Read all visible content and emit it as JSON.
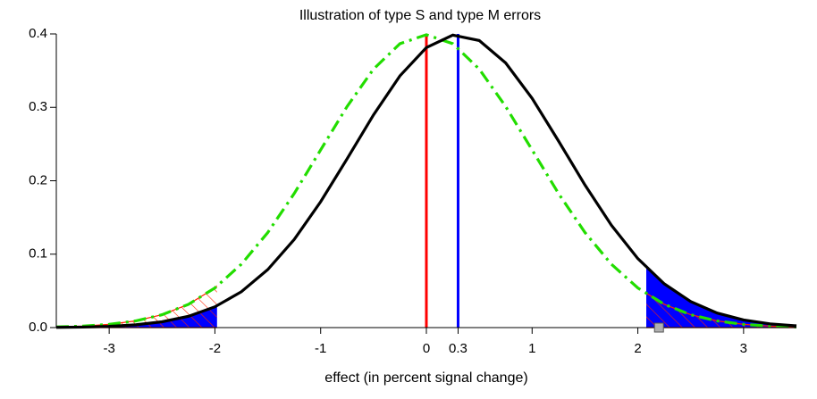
{
  "chart_data": {
    "type": "line",
    "title": "Illustration of type S and type M errors",
    "x_label": "effect (in percent signal change)",
    "x": [
      -3.5,
      -3.25,
      -3,
      -2.75,
      -2.5,
      -2.25,
      -2,
      -1.75,
      -1.5,
      -1.25,
      -1,
      -0.75,
      -0.5,
      -0.25,
      0,
      0.25,
      0.5,
      0.75,
      1,
      1.25,
      1.5,
      1.75,
      2,
      2.25,
      2.5,
      2.75,
      3,
      3.25,
      3.5
    ],
    "series": [
      {
        "color": "#22dd00",
        "style": "dashdot",
        "values": [
          0.0009,
          0.002,
          0.0044,
          0.0091,
          0.0175,
          0.0317,
          0.054,
          0.0863,
          0.1295,
          0.1826,
          0.242,
          0.3011,
          0.3521,
          0.3867,
          0.3989,
          0.3867,
          0.3521,
          0.3011,
          0.242,
          0.1826,
          0.1295,
          0.0863,
          0.054,
          0.0317,
          0.0175,
          0.0091,
          0.0044,
          0.002,
          0.0009
        ]
      },
      {
        "color": "#000000",
        "style": "solid",
        "values": [
          0.0003,
          0.0007,
          0.0017,
          0.0038,
          0.0079,
          0.0154,
          0.0283,
          0.0488,
          0.079,
          0.12,
          0.1714,
          0.2299,
          0.2897,
          0.3429,
          0.3814,
          0.3984,
          0.391,
          0.3605,
          0.3123,
          0.2541,
          0.1942,
          0.1394,
          0.094,
          0.0596,
          0.0355,
          0.0198,
          0.0104,
          0.0051,
          0.0024
        ]
      }
    ],
    "shade_cutoffs": [
      -1.98,
      2.08
    ],
    "shade_fill": "#0000ff",
    "hatch_color": "#ff2200",
    "vlines": [
      {
        "x": 0,
        "color": "#ff0000"
      },
      {
        "x": 0.3,
        "color": "#0000ff"
      }
    ],
    "marker": {
      "x": 2.2,
      "y": 0,
      "color": "#b0b0b0"
    },
    "xlim": [
      -3.5,
      3.5
    ],
    "ylim": [
      0,
      0.4
    ],
    "xticks": [
      -3,
      -2,
      -1,
      0,
      0.3,
      1,
      2,
      3
    ],
    "yticks": [
      {
        "value": 0,
        "label": "0.0"
      },
      0.1,
      0.2,
      0.3,
      0.4
    ]
  }
}
